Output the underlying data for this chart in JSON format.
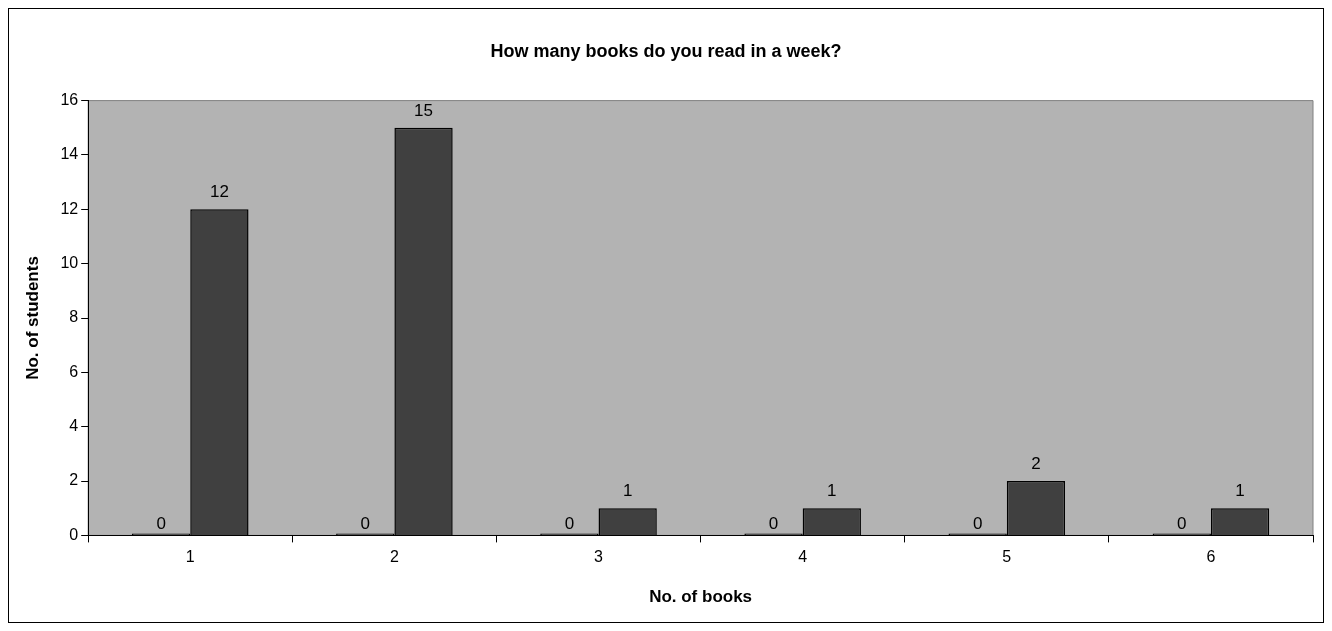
{
  "chart_data": {
    "type": "bar",
    "title": "How many books do you read in a week?",
    "xlabel": "No. of books",
    "ylabel": "No. of students",
    "categories": [
      "1",
      "2",
      "3",
      "4",
      "5",
      "6"
    ],
    "series": [
      {
        "color": "#404040",
        "values": [
          0,
          0,
          0,
          0,
          0,
          0
        ]
      },
      {
        "color": "#404040",
        "values": [
          12,
          15,
          1,
          1,
          2,
          1
        ]
      }
    ],
    "ylim": [
      0,
      16
    ],
    "yticks": [
      0,
      2,
      4,
      6,
      8,
      10,
      12,
      14,
      16
    ],
    "grid": false,
    "legend": false,
    "data_labels": true
  }
}
